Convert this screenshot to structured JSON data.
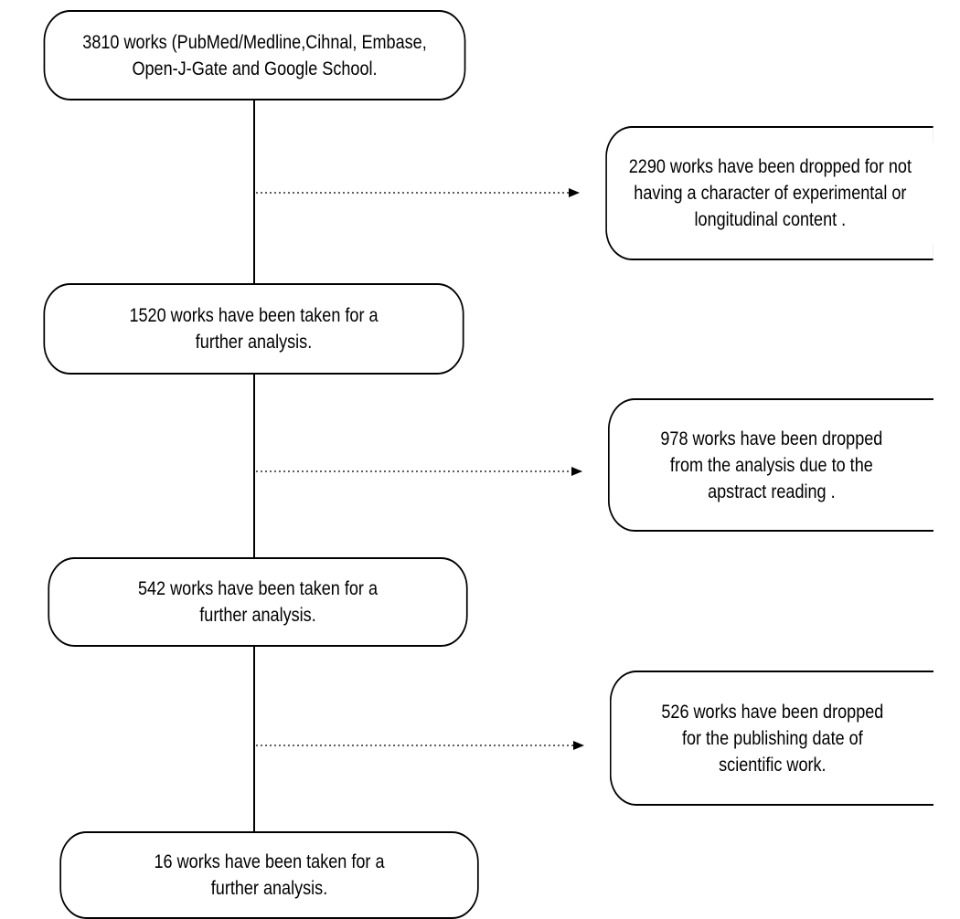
{
  "flow": {
    "steps": [
      {
        "text": "3810  works  (PubMed/Medline,Cihnal, Embase,\nOpen-J-Gate and Google School."
      },
      {
        "text": "1520 works have been  taken for a\nfurther analysis."
      },
      {
        "text": "542   works have been taken for a\nfurther analysis."
      },
      {
        "text": "16  works have been taken for a\nfurther analysis."
      }
    ],
    "exclusions": [
      {
        "text": "2290 works have been dropped for not\nhaving a character of  experimental or\nlongitudinal content ."
      },
      {
        "text": "978 works have been dropped\nfrom the analysis due to the\napstract reading ."
      },
      {
        "text": "526 works have been dropped\nfor the publishing date of\nscientific work."
      }
    ]
  }
}
